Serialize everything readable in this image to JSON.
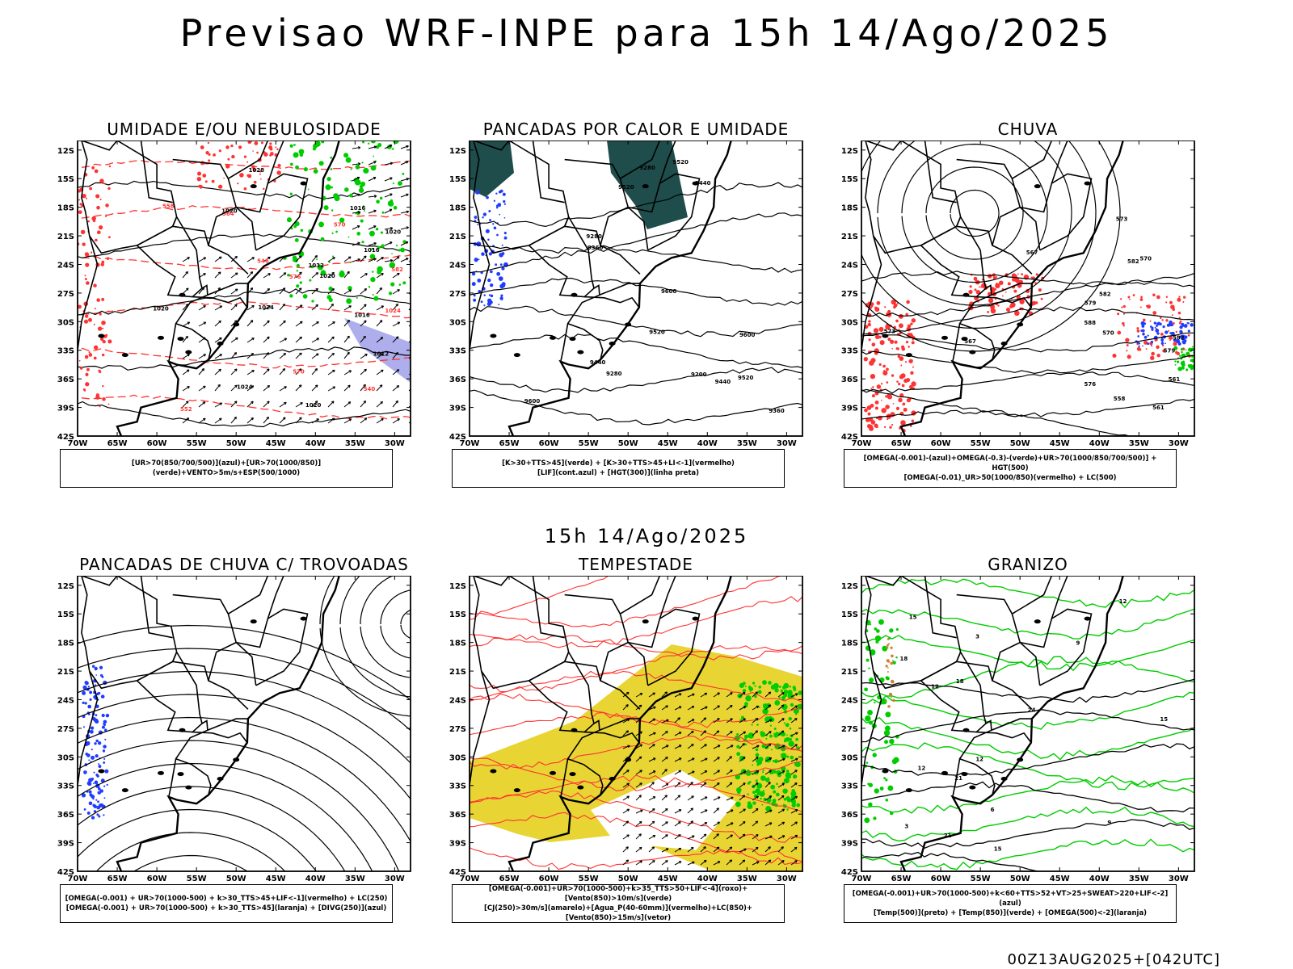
{
  "header": {
    "title": "Previsao WRF-INPE  para 15h 14/Ago/2025",
    "subtitle": "15h 14/Ago/2025",
    "run_stamp": "00Z13AUG2025+[042UTC]"
  },
  "axes": {
    "lat_ticks": [
      "12S",
      "15S",
      "18S",
      "21S",
      "24S",
      "27S",
      "30S",
      "33S",
      "36S",
      "39S",
      "42S"
    ],
    "lon_ticks": [
      "70W",
      "65W",
      "60W",
      "55W",
      "50W",
      "45W",
      "40W",
      "35W",
      "30W"
    ]
  },
  "colors": {
    "red": "#ff3333",
    "green": "#00cc00",
    "blue": "#1f3cff",
    "yellow": "#e8d534",
    "teal": "#1e4d4b",
    "lavender": "#9a9ae8",
    "orange": "#d08030"
  },
  "panels": [
    {
      "title": "UMIDADE E/OU NEBULOSIDADE",
      "legend": [
        "[UR>70(850/700/500)](azul)+[UR>70(1000/850)](verde)+VENTO>5m/s+ESP(500/1000)"
      ],
      "contour_labels": [
        "1012",
        "1016",
        "1016",
        "1016",
        "1020",
        "1020",
        "1020",
        "1020",
        "1024",
        "1024",
        "1028",
        "1032",
        "1020",
        "1024",
        "570",
        "570",
        "564",
        "558",
        "552",
        "546",
        "540",
        "582",
        "576"
      ]
    },
    {
      "title": "PANCADAS POR CALOR E UMIDADE",
      "legend": [
        "[K>30+TTS>45](verde) + [K>30+TTS>45+LI<-1](vermelho)",
        "[LIF](cont.azul) + [HGT(300)](linha preta)"
      ],
      "contour_labels": [
        "9600",
        "9600",
        "9600",
        "9520",
        "9520",
        "9520",
        "9520",
        "9440",
        "9440",
        "9440",
        "9360",
        "9360",
        "9280",
        "9280",
        "9200",
        "9280"
      ]
    },
    {
      "title": "CHUVA",
      "legend": [
        "[OMEGA(-0.001)-(azul)+OMEGA(-0.3)-(verde)+UR>70(1000/850/700/500)] + HGT(500)",
        "[OMEGA(-0.01)_UR>50(1000/850)(vermelho) + LC(500)"
      ],
      "contour_labels": [
        "588",
        "582",
        "582",
        "579",
        "576",
        "573",
        "570",
        "567",
        "561",
        "558",
        "582",
        "579",
        "573",
        "570",
        "567",
        "561"
      ]
    },
    {
      "title": "PANCADAS DE CHUVA C/ TROVOADAS",
      "legend": [
        "[OMEGA(-0.001) + UR>70(1000-500) + k>30_TTS>45+LIF<-1](vermelho) + LC(250)",
        "[OMEGA(-0.001) + UR>70(1000-500) + k>30_TTS>45](laranja) + [DIVG(250)](azul)"
      ],
      "contour_labels": []
    },
    {
      "title": "TEMPESTADE",
      "legend": [
        "[OMEGA(-0.001)+UR>70(1000-500)+k>35_TTS>50+LIF<-4](roxo)+[Vento(850)>10m/s](verde)",
        "[CJ(250)>30m/s](amarelo)+[Agua_P(40-60mm)](vermelho)+LC(850)+[Vento(850)>15m/s](vetor)"
      ],
      "contour_labels": []
    },
    {
      "title": "GRANIZO",
      "legend": [
        "[OMEGA(-0.001)+UR>70(1000-500)+k<60+TTS>52+VT>25+SWEAT>220+LIF<-2](azul)",
        "[Temp(500)](preto) + [Temp(850)](verde) + [OMEGA(500)<-2](laranja)"
      ],
      "contour_labels": [
        "12",
        "21",
        "3",
        "9",
        "12",
        "12",
        "15",
        "3",
        "6",
        "9",
        "12",
        "15",
        "18",
        "21",
        "24",
        "18",
        "15"
      ]
    }
  ]
}
